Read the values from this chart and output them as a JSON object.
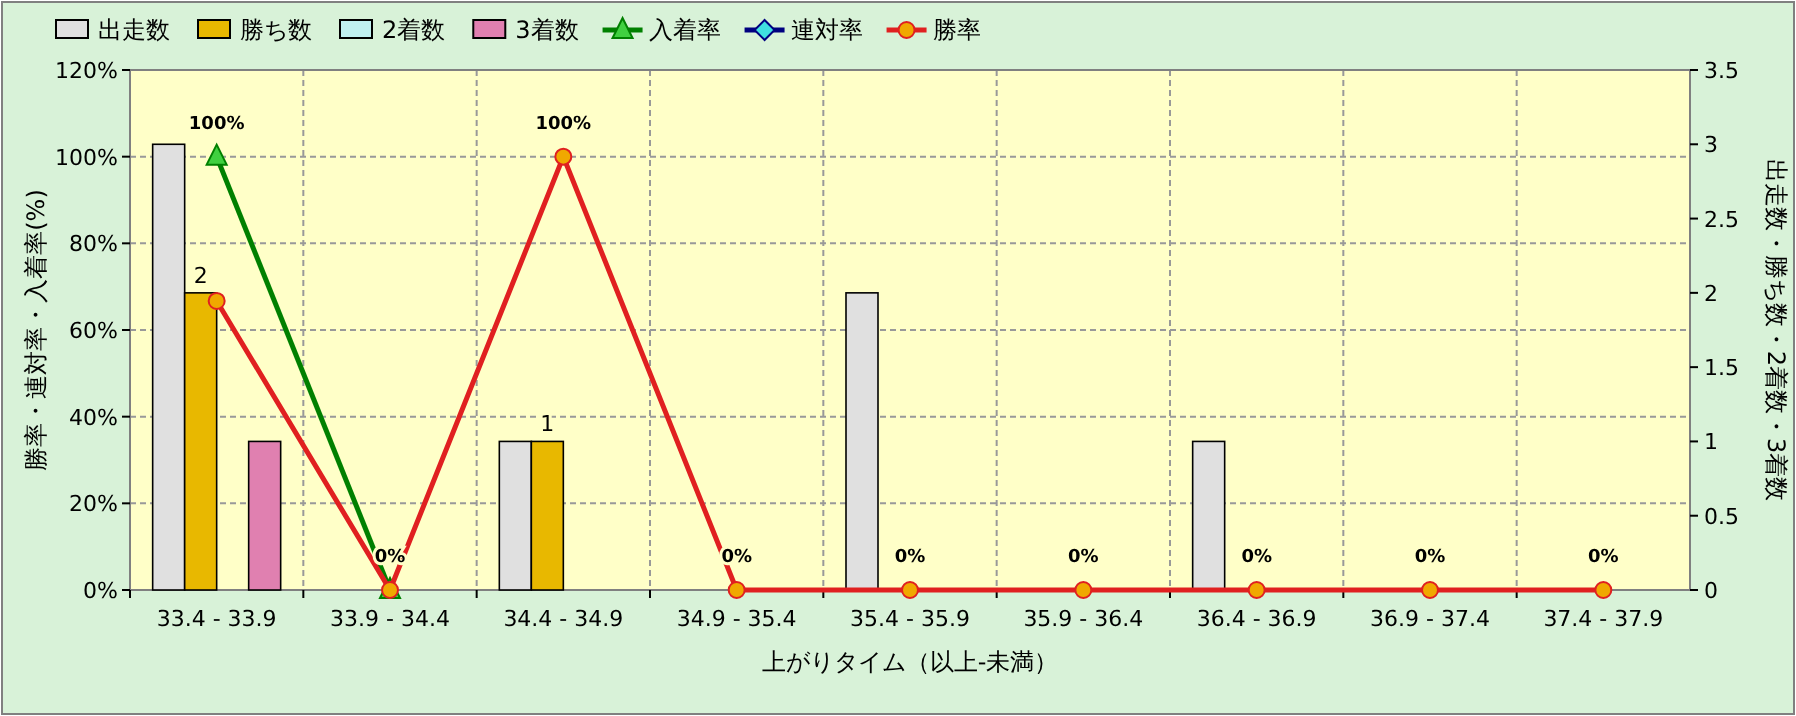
{
  "chart_data": {
    "type": "bar",
    "xlabel": "上がりタイム（以上-未満）",
    "ylabel": "勝率・連対率・入着率(%)",
    "y2label": "出走数・勝ち数・2着数・3着数",
    "categories": [
      "33.4 - 33.9",
      "33.9 - 34.4",
      "34.4 - 34.9",
      "34.9 - 35.4",
      "35.4 - 35.9",
      "35.9 - 36.4",
      "36.4 - 36.9",
      "36.9 - 37.4",
      "37.4 - 37.9"
    ],
    "ylim": [
      0,
      120
    ],
    "yticks": [
      {
        "value": 0,
        "label": "0%"
      },
      {
        "value": 20,
        "label": "20%"
      },
      {
        "value": 40,
        "label": "40%"
      },
      {
        "value": 60,
        "label": "60%"
      },
      {
        "value": 80,
        "label": "80%"
      },
      {
        "value": 100,
        "label": "100%"
      },
      {
        "value": 120,
        "label": "120%"
      }
    ],
    "y2lim": [
      0,
      3.5
    ],
    "y2ticks": [
      0,
      0.5,
      1,
      1.5,
      2,
      2.5,
      3,
      3.5
    ],
    "grid": true,
    "legend": "top left",
    "series": [
      {
        "name": "出走数",
        "axis": "y2",
        "color": "#e0e0e0",
        "values": [
          3,
          0,
          1,
          0,
          2,
          0,
          1,
          0,
          0
        ]
      },
      {
        "name": "勝ち数",
        "axis": "y2",
        "color": "#e8b800",
        "values": [
          2,
          0,
          1,
          0,
          0,
          0,
          0,
          0,
          0
        ],
        "value_labels": [
          "2",
          null,
          "1",
          null,
          null,
          null,
          null,
          null,
          null
        ]
      },
      {
        "name": "2着数",
        "axis": "y2",
        "color": "#c0f0f0",
        "values": [
          0,
          0,
          0,
          0,
          0,
          0,
          0,
          0,
          0
        ]
      },
      {
        "name": "3着数",
        "axis": "y2",
        "color": "#e080b0",
        "values": [
          1,
          0,
          0,
          0,
          0,
          0,
          0,
          0,
          0
        ]
      },
      {
        "name": "入着率",
        "type": "line",
        "color": "#008000",
        "marker": "triangle",
        "values": [
          100,
          0,
          null,
          null,
          null,
          null,
          null,
          null,
          null
        ],
        "value_labels": [
          "100%",
          "0%",
          null,
          null,
          null,
          null,
          null,
          null,
          null
        ]
      },
      {
        "name": "連対率",
        "type": "line",
        "color": "#000080",
        "marker": "diamond",
        "values": [
          null,
          null,
          null,
          null,
          null,
          null,
          null,
          null,
          null
        ]
      },
      {
        "name": "勝率",
        "type": "line",
        "color": "#e02020",
        "marker": "circle",
        "values": [
          66.7,
          0,
          100,
          0,
          0,
          0,
          0,
          0,
          0
        ],
        "value_labels": [
          null,
          null,
          "100%",
          "0%",
          "0%",
          "0%",
          "0%",
          "0%",
          "0%"
        ]
      }
    ]
  }
}
